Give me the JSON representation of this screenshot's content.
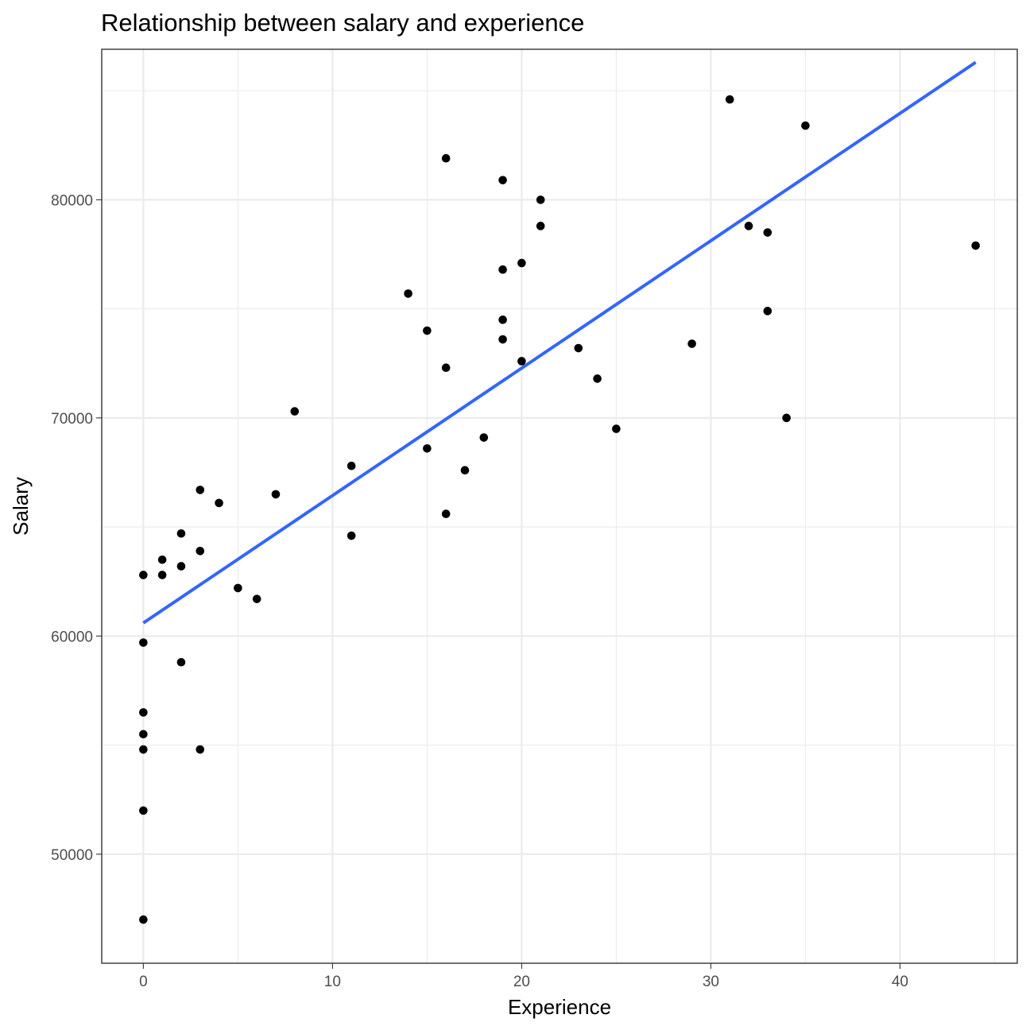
{
  "chart_data": {
    "type": "scatter",
    "title": "Relationship between salary and experience",
    "xlabel": "Experience",
    "ylabel": "Salary",
    "xlim": [
      -2.2,
      46.2
    ],
    "ylim": [
      45000,
      86900
    ],
    "x_ticks": [
      0,
      10,
      20,
      30,
      40
    ],
    "x_tick_labels": [
      "0",
      "10",
      "20",
      "30",
      "40"
    ],
    "y_ticks": [
      50000,
      60000,
      70000,
      80000
    ],
    "y_tick_labels": [
      "50000",
      "60000",
      "70000",
      "80000"
    ],
    "grid": true,
    "legend": "none",
    "points": [
      {
        "x": 0,
        "y": 62800
      },
      {
        "x": 0,
        "y": 59700
      },
      {
        "x": 0,
        "y": 56500
      },
      {
        "x": 0,
        "y": 55500
      },
      {
        "x": 0,
        "y": 54800
      },
      {
        "x": 0,
        "y": 52000
      },
      {
        "x": 0,
        "y": 47000
      },
      {
        "x": 1,
        "y": 63500
      },
      {
        "x": 1,
        "y": 62800
      },
      {
        "x": 2,
        "y": 64700
      },
      {
        "x": 2,
        "y": 63200
      },
      {
        "x": 2,
        "y": 58800
      },
      {
        "x": 3,
        "y": 66700
      },
      {
        "x": 3,
        "y": 63900
      },
      {
        "x": 3,
        "y": 54800
      },
      {
        "x": 4,
        "y": 66100
      },
      {
        "x": 5,
        "y": 62200
      },
      {
        "x": 6,
        "y": 61700
      },
      {
        "x": 7,
        "y": 66500
      },
      {
        "x": 8,
        "y": 70300
      },
      {
        "x": 11,
        "y": 67800
      },
      {
        "x": 11,
        "y": 64600
      },
      {
        "x": 14,
        "y": 75700
      },
      {
        "x": 15,
        "y": 74000
      },
      {
        "x": 15,
        "y": 68600
      },
      {
        "x": 16,
        "y": 81900
      },
      {
        "x": 16,
        "y": 72300
      },
      {
        "x": 16,
        "y": 65600
      },
      {
        "x": 17,
        "y": 67600
      },
      {
        "x": 18,
        "y": 69100
      },
      {
        "x": 19,
        "y": 80900
      },
      {
        "x": 19,
        "y": 76800
      },
      {
        "x": 19,
        "y": 74500
      },
      {
        "x": 19,
        "y": 73600
      },
      {
        "x": 20,
        "y": 77100
      },
      {
        "x": 20,
        "y": 72600
      },
      {
        "x": 21,
        "y": 80000
      },
      {
        "x": 21,
        "y": 78800
      },
      {
        "x": 23,
        "y": 73200
      },
      {
        "x": 24,
        "y": 71800
      },
      {
        "x": 25,
        "y": 69500
      },
      {
        "x": 29,
        "y": 73400
      },
      {
        "x": 31,
        "y": 84600
      },
      {
        "x": 32,
        "y": 78800
      },
      {
        "x": 33,
        "y": 78500
      },
      {
        "x": 33,
        "y": 74900
      },
      {
        "x": 34,
        "y": 70000
      },
      {
        "x": 35,
        "y": 83400
      },
      {
        "x": 44,
        "y": 77900
      }
    ],
    "series": [
      {
        "type": "line",
        "color": "#3366ff",
        "x": [
          0,
          44
        ],
        "y": [
          60600,
          86300
        ]
      }
    ],
    "colors": {
      "point": "#000000",
      "fit_line": "#3366ff",
      "grid": "#ebebeb",
      "border": "#333333"
    }
  }
}
